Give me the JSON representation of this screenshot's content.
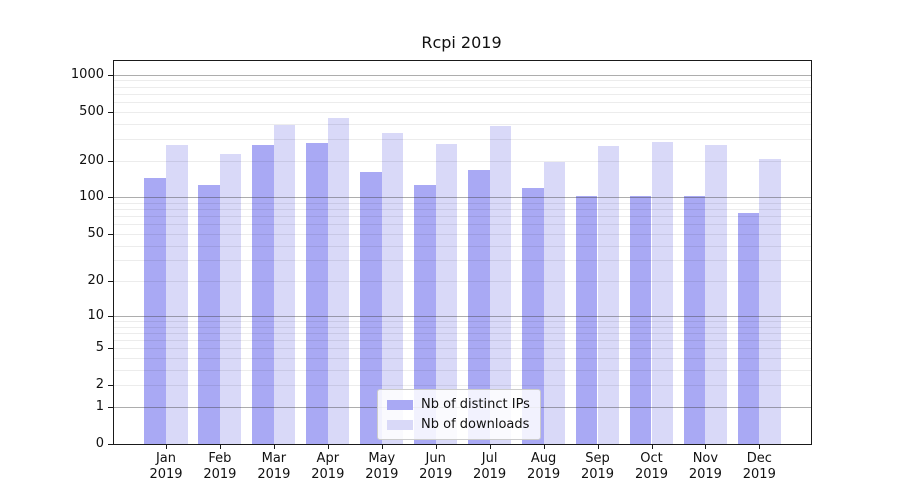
{
  "chart_data": {
    "type": "bar",
    "title": "Rcpi 2019",
    "categories": [
      "Jan 2019",
      "Feb 2019",
      "Mar 2019",
      "Apr 2019",
      "May 2019",
      "Jun 2019",
      "Jul 2019",
      "Aug 2019",
      "Sep 2019",
      "Oct 2019",
      "Nov 2019",
      "Dec 2019"
    ],
    "x_months": [
      "Jan",
      "Feb",
      "Mar",
      "Apr",
      "May",
      "Jun",
      "Jul",
      "Aug",
      "Sep",
      "Oct",
      "Nov",
      "Dec"
    ],
    "x_year": "2019",
    "series": [
      {
        "name": "Nb of distinct IPs",
        "color": "#a9a9f4",
        "values": [
          145,
          127,
          269,
          280,
          162,
          126,
          166,
          120,
          103,
          103,
          102,
          75
        ]
      },
      {
        "name": "Nb of downloads",
        "color": "#d9d9f8",
        "values": [
          270,
          225,
          390,
          445,
          337,
          275,
          380,
          196,
          261,
          285,
          269,
          206
        ]
      }
    ],
    "y_ticks": [
      0,
      1,
      2,
      5,
      10,
      20,
      50,
      100,
      200,
      500,
      1000
    ],
    "y_scale": "log1p",
    "ylim": [
      0,
      1300
    ],
    "xlabel": "",
    "ylabel": "",
    "grid": true,
    "grid_minor_subs": [
      2,
      3,
      4,
      5,
      6,
      7,
      8,
      9
    ],
    "legend_position": "lower-center-inside",
    "axis_color": "#1a1a1a"
  }
}
